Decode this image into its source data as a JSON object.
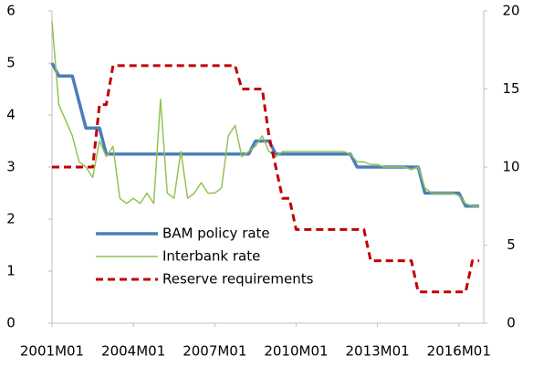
{
  "chart_data": {
    "type": "line",
    "x": [
      "2001M01",
      "2001M04",
      "2001M07",
      "2001M10",
      "2002M01",
      "2002M04",
      "2002M07",
      "2002M10",
      "2003M01",
      "2003M04",
      "2003M07",
      "2003M10",
      "2004M01",
      "2004M04",
      "2004M07",
      "2004M10",
      "2005M01",
      "2005M04",
      "2005M07",
      "2005M10",
      "2006M01",
      "2006M04",
      "2006M07",
      "2006M10",
      "2007M01",
      "2007M04",
      "2007M07",
      "2007M10",
      "2008M01",
      "2008M04",
      "2008M07",
      "2008M10",
      "2009M01",
      "2009M04",
      "2009M07",
      "2009M10",
      "2010M01",
      "2010M04",
      "2010M07",
      "2010M10",
      "2011M01",
      "2011M04",
      "2011M07",
      "2011M10",
      "2012M01",
      "2012M04",
      "2012M07",
      "2012M10",
      "2013M01",
      "2013M04",
      "2013M07",
      "2013M10",
      "2014M01",
      "2014M04",
      "2014M07",
      "2014M10",
      "2015M01",
      "2015M04",
      "2015M07",
      "2015M10",
      "2016M01",
      "2016M04",
      "2016M07",
      "2016M10"
    ],
    "xlim": [
      "2001M01",
      "2016M12"
    ],
    "xticks": [
      "2001M01",
      "2004M01",
      "2007M01",
      "2010M01",
      "2013M01",
      "2016M01"
    ],
    "ylim": [
      0,
      6
    ],
    "yticks": [
      0,
      1,
      2,
      3,
      4,
      5,
      6
    ],
    "y2lim": [
      0,
      20
    ],
    "y2ticks": [
      0,
      5,
      10,
      15,
      20
    ],
    "legend": "lower-left",
    "series": [
      {
        "name": "BAM policy rate",
        "color": "#4a7ebb",
        "width": 3.5,
        "dash": "solid",
        "values": [
          5,
          4.75,
          4.75,
          4.75,
          4.25,
          3.75,
          3.75,
          3.75,
          3.25,
          3.25,
          3.25,
          3.25,
          3.25,
          3.25,
          3.25,
          3.25,
          3.25,
          3.25,
          3.25,
          3.25,
          3.25,
          3.25,
          3.25,
          3.25,
          3.25,
          3.25,
          3.25,
          3.25,
          3.25,
          3.25,
          3.5,
          3.5,
          3.5,
          3.25,
          3.25,
          3.25,
          3.25,
          3.25,
          3.25,
          3.25,
          3.25,
          3.25,
          3.25,
          3.25,
          3.25,
          3,
          3,
          3,
          3,
          3,
          3,
          3,
          3,
          3,
          3,
          2.5,
          2.5,
          2.5,
          2.5,
          2.5,
          2.5,
          2.25,
          2.25,
          2.25
        ]
      },
      {
        "name": "Interbank rate",
        "color": "#92c353",
        "width": 1.5,
        "dash": "solid",
        "values": [
          5.8,
          4.2,
          3.9,
          3.6,
          3.1,
          3.0,
          2.8,
          3.5,
          3.2,
          3.4,
          2.4,
          2.3,
          2.4,
          2.3,
          2.5,
          2.3,
          4.3,
          2.5,
          2.4,
          3.3,
          2.4,
          2.5,
          2.7,
          2.5,
          2.5,
          2.6,
          3.6,
          3.8,
          3.2,
          3.3,
          3.4,
          3.6,
          3.3,
          3.2,
          3.3,
          3.3,
          3.3,
          3.3,
          3.3,
          3.3,
          3.3,
          3.3,
          3.3,
          3.3,
          3.25,
          3.1,
          3.1,
          3.05,
          3.05,
          3.0,
          3.0,
          3.0,
          3.0,
          2.95,
          3.0,
          2.6,
          2.5,
          2.5,
          2.5,
          2.5,
          2.45,
          2.3,
          2.25,
          2.25
        ]
      },
      {
        "name": "Reserve requirements",
        "color": "#c00000",
        "width": 3,
        "dash": "dashed",
        "axis": "y2",
        "values": [
          10,
          10,
          10,
          10,
          10,
          10,
          10,
          14,
          14,
          16.5,
          16.5,
          16.5,
          16.5,
          16.5,
          16.5,
          16.5,
          16.5,
          16.5,
          16.5,
          16.5,
          16.5,
          16.5,
          16.5,
          16.5,
          16.5,
          16.5,
          16.5,
          16.5,
          15,
          15,
          15,
          15,
          12,
          10,
          8,
          8,
          6,
          6,
          6,
          6,
          6,
          6,
          6,
          6,
          6,
          6,
          6,
          4,
          4,
          4,
          4,
          4,
          4,
          4,
          2,
          2,
          2,
          2,
          2,
          2,
          2,
          2,
          4,
          4
        ]
      }
    ]
  }
}
